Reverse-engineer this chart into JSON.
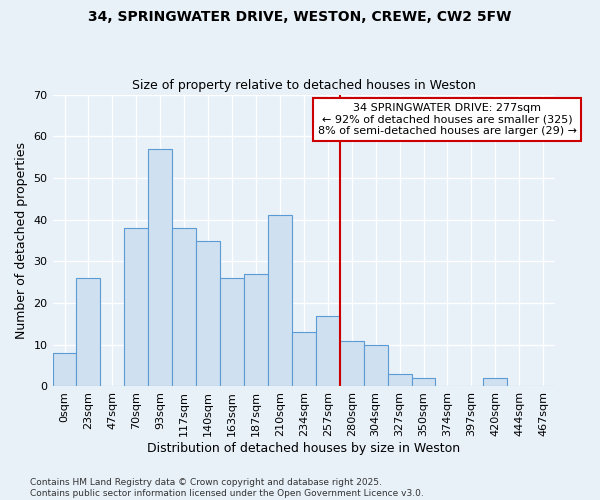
{
  "title1": "34, SPRINGWATER DRIVE, WESTON, CREWE, CW2 5FW",
  "title2": "Size of property relative to detached houses in Weston",
  "xlabel": "Distribution of detached houses by size in Weston",
  "ylabel": "Number of detached properties",
  "bar_labels": [
    "0sqm",
    "23sqm",
    "47sqm",
    "70sqm",
    "93sqm",
    "117sqm",
    "140sqm",
    "163sqm",
    "187sqm",
    "210sqm",
    "234sqm",
    "257sqm",
    "280sqm",
    "304sqm",
    "327sqm",
    "350sqm",
    "374sqm",
    "397sqm",
    "420sqm",
    "444sqm",
    "467sqm"
  ],
  "bar_values": [
    8,
    26,
    0,
    38,
    57,
    38,
    35,
    26,
    27,
    41,
    13,
    17,
    11,
    10,
    3,
    2,
    0,
    0,
    2,
    0,
    0
  ],
  "bar_color": "#cfe0f0",
  "bar_edge_color": "#5b9bd5",
  "ylim": [
    0,
    70
  ],
  "yticks": [
    0,
    10,
    20,
    30,
    40,
    50,
    60,
    70
  ],
  "property_line_label": "34 SPRINGWATER DRIVE: 277sqm",
  "annotation_line1": "← 92% of detached houses are smaller (325)",
  "annotation_line2": "8% of semi-detached houses are larger (29) →",
  "annotation_box_color": "#ffffff",
  "annotation_box_edge": "#cc0000",
  "line_color": "#cc0000",
  "footer1": "Contains HM Land Registry data © Crown copyright and database right 2025.",
  "footer2": "Contains public sector information licensed under the Open Government Licence v3.0.",
  "bg_color": "#e8f0f8",
  "plot_bg_color": "#e8f0f8",
  "grid_color": "#ffffff",
  "grid_linewidth": 1.0,
  "line_x_index": 12.0,
  "title1_fontsize": 10,
  "title2_fontsize": 9,
  "xlabel_fontsize": 9,
  "ylabel_fontsize": 9,
  "tick_fontsize": 8,
  "annot_fontsize": 8,
  "footer_fontsize": 6.5
}
